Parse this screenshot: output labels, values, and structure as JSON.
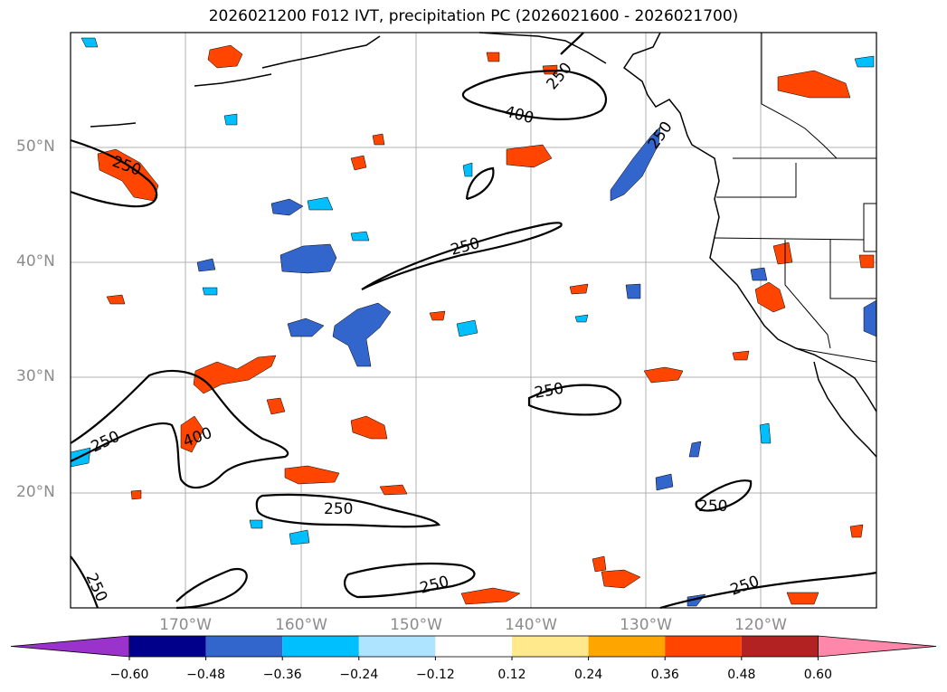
{
  "title": "2026021200 F012 IVT, precipitation PC (2026021600 - 2026021700)",
  "map": {
    "lat_labels": [
      "50°N",
      "40°N",
      "30°N",
      "20°N"
    ],
    "lon_labels": [
      "170°W",
      "160°W",
      "150°W",
      "140°W",
      "130°W",
      "120°W"
    ],
    "ivt_contour_labels": [
      "250",
      "400",
      "250",
      "250",
      "250",
      "400",
      "250",
      "250",
      "250",
      "250",
      "250",
      "250",
      "250"
    ],
    "land_color": "#ffffff",
    "coastline_color": "#000000",
    "gridline_color": "#b0b0b0"
  },
  "colorbar": {
    "ticks": [
      "−0.60",
      "−0.48",
      "−0.36",
      "−0.24",
      "−0.12",
      "0.12",
      "0.24",
      "0.36",
      "0.48",
      "0.60"
    ],
    "colors": [
      "#9933cc",
      "#00008b",
      "#3366cc",
      "#00bfff",
      "#aee4ff",
      "#ffffff",
      "#ffe98c",
      "#ffa500",
      "#ff4500",
      "#b22222",
      "#ff88aa"
    ]
  }
}
